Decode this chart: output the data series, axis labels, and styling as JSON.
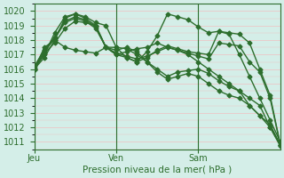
{
  "xlabel": "Pression niveau de la mer( hPa )",
  "bg_color": "#d4eee8",
  "grid_color": "#f0c0c0",
  "line_color": "#2d6e2d",
  "day_line_color": "#2d6e2d",
  "ylim": [
    1010.5,
    1020.5
  ],
  "yticks": [
    1011,
    1012,
    1013,
    1014,
    1015,
    1016,
    1017,
    1018,
    1019,
    1020
  ],
  "day_positions": [
    0,
    8,
    16
  ],
  "day_labels": [
    "Jeu",
    "Ven",
    "Sam"
  ],
  "series": [
    [
      1016.0,
      1016.8,
      1018.0,
      1019.5,
      1019.8,
      1019.6,
      1019.2,
      1019.0,
      1017.5,
      1016.8,
      1016.5,
      1017.2,
      1018.3,
      1019.8,
      1019.6,
      1019.4,
      1018.9,
      1018.5,
      1018.6,
      1018.4,
      1017.0,
      1015.5,
      1014.0,
      1012.5,
      1011.0
    ],
    [
      1016.0,
      1017.0,
      1018.5,
      1019.6,
      1019.8,
      1019.5,
      1019.0,
      1017.5,
      1017.0,
      1017.2,
      1017.4,
      1017.5,
      1017.8,
      1017.5,
      1017.3,
      1017.0,
      1016.5,
      1016.0,
      1015.5,
      1015.0,
      1014.5,
      1013.5,
      1012.8,
      1012.2,
      1010.8
    ],
    [
      1016.1,
      1017.2,
      1018.1,
      1019.2,
      1019.5,
      1019.3,
      1018.8,
      1017.5,
      1017.0,
      1016.8,
      1016.5,
      1016.8,
      1017.3,
      1017.6,
      1017.4,
      1017.2,
      1017.1,
      1017.0,
      1018.6,
      1018.5,
      1018.4,
      1017.8,
      1016.0,
      1014.2,
      1010.8
    ],
    [
      1016.2,
      1017.3,
      1018.2,
      1019.3,
      1019.6,
      1019.4,
      1018.9,
      1017.5,
      1017.1,
      1016.9,
      1016.7,
      1016.9,
      1017.2,
      1017.5,
      1017.3,
      1017.1,
      1016.9,
      1016.7,
      1017.8,
      1017.7,
      1017.6,
      1016.5,
      1015.8,
      1014.0,
      1010.8
    ],
    [
      1016.0,
      1017.1,
      1017.8,
      1018.8,
      1019.3,
      1019.2,
      1019.0,
      1017.5,
      1017.3,
      1017.5,
      1017.2,
      1016.5,
      1016.0,
      1015.5,
      1015.8,
      1015.9,
      1016.0,
      1015.7,
      1015.2,
      1014.8,
      1014.5,
      1014.0,
      1013.5,
      1012.0,
      1010.7
    ],
    [
      1016.0,
      1017.5,
      1018.0,
      1017.5,
      1017.3,
      1017.2,
      1017.1,
      1017.5,
      1017.5,
      1017.4,
      1017.0,
      1016.5,
      1015.8,
      1015.3,
      1015.5,
      1015.7,
      1015.5,
      1015.0,
      1014.5,
      1014.2,
      1014.0,
      1013.5,
      1012.8,
      1012.0,
      1010.8
    ]
  ],
  "marker": "D",
  "markersize": 2.5,
  "linewidth": 1.0
}
